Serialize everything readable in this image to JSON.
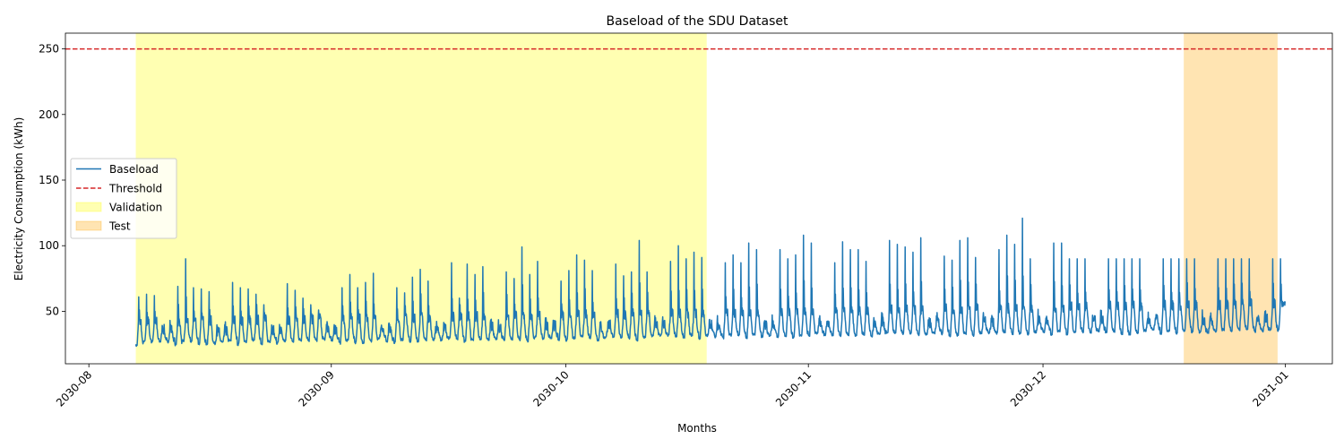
{
  "chart_data": {
    "type": "line",
    "title": "Baseload of the SDU Dataset",
    "xlabel": "Months",
    "ylabel": "Electricity Consumption (kWh)",
    "xlim": [
      "2030-07-29",
      "2031-01-07"
    ],
    "ylim": [
      10,
      262
    ],
    "x_ticks": [
      "2030-08-01",
      "2030-09-01",
      "2030-10-01",
      "2030-11-01",
      "2030-12-01",
      "2031-01-01"
    ],
    "x_tick_labels": [
      "2030-08",
      "2030-09",
      "2030-10",
      "2030-11",
      "2030-12",
      "2031-01"
    ],
    "y_ticks": [
      50,
      100,
      150,
      200,
      250
    ],
    "grid": false,
    "legend_position": "center-left",
    "series": [
      {
        "name": "Baseload",
        "color": "#1f77b4",
        "start": "2030-08-07",
        "end": "2030-12-31",
        "frequency": "hourly",
        "pattern": "daily peaks 50-120 kWh, nightly troughs 23-38 kWh, lower on weekends",
        "weekly_peaks": [
          [
            61,
            63,
            62,
            68,
            78,
            69
          ],
          [
            68,
            67,
            65,
            84,
            59,
            72,
            68
          ],
          [
            67,
            63,
            55,
            70,
            64,
            71,
            66
          ],
          [
            60,
            55,
            51,
            84,
            68,
            68,
            78
          ],
          [
            68,
            72,
            79,
            82,
            73,
            68,
            64
          ],
          [
            76,
            82,
            73,
            87,
            75,
            87,
            60
          ],
          [
            86,
            78,
            84,
            76,
            70,
            80,
            75
          ],
          [
            99,
            78,
            88,
            80,
            82,
            73,
            81
          ],
          [
            93,
            89,
            81,
            82,
            87,
            86,
            77
          ],
          [
            80,
            104,
            80,
            76,
            88,
            88,
            100
          ],
          [
            90,
            95,
            91,
            80,
            102,
            87,
            93
          ],
          [
            87,
            102,
            97,
            88,
            105,
            97,
            90
          ],
          [
            93,
            108,
            102,
            97,
            92,
            87,
            103
          ],
          [
            97,
            97,
            88,
            103,
            95,
            104,
            101
          ],
          [
            99,
            95,
            106,
            104,
            101,
            92,
            89
          ],
          [
            104,
            106,
            91,
            88,
            96,
            97,
            108
          ],
          [
            101,
            121,
            90,
            88,
            91,
            102,
            102
          ]
        ]
      },
      {
        "name": "Threshold",
        "color": "#d62728",
        "style": "dashed",
        "value": 250
      }
    ],
    "spans": [
      {
        "name": "Validation",
        "start": "2030-08-07",
        "end": "2030-10-19",
        "color": "#ffff00",
        "alpha": 0.3
      },
      {
        "name": "Test",
        "start": "2030-12-19",
        "end": "2030-12-31",
        "color": "#ffa500",
        "alpha": 0.3
      }
    ]
  }
}
